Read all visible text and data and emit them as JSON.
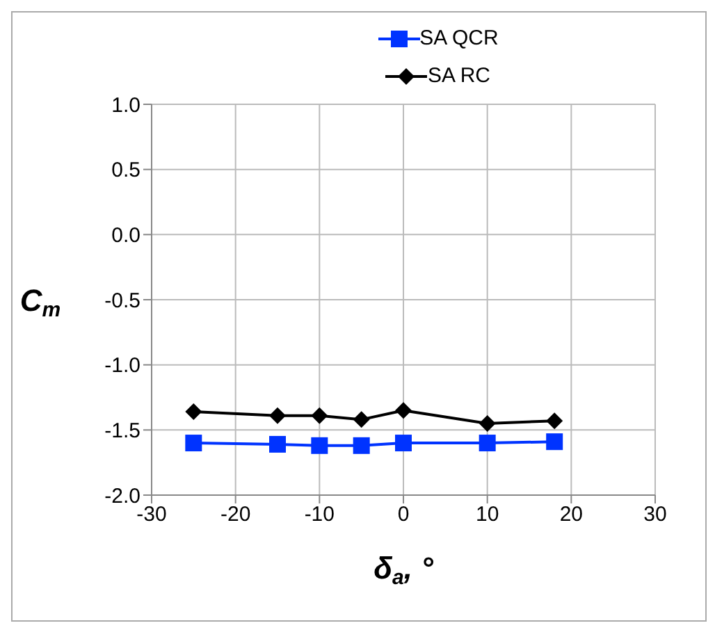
{
  "chart_data": {
    "type": "line",
    "x": [
      -25,
      -15,
      -10,
      -5,
      0,
      10,
      18
    ],
    "series": [
      {
        "name": "SA QCR",
        "color": "#0033ff",
        "marker": "square",
        "values": [
          -1.6,
          -1.61,
          -1.62,
          -1.62,
          -1.6,
          -1.6,
          -1.59
        ]
      },
      {
        "name": "SA RC",
        "color": "#000000",
        "marker": "diamond",
        "values": [
          -1.36,
          -1.39,
          -1.39,
          -1.42,
          -1.35,
          -1.45,
          -1.43
        ]
      }
    ],
    "xlabel": "δ$_{a}$, °",
    "ylabel": "C$_{m}$",
    "xlim": [
      -30,
      30
    ],
    "xticks": [
      -30,
      -20,
      -10,
      0,
      10,
      20,
      30
    ],
    "ylim": [
      -2.0,
      1.0
    ],
    "yticks": [
      {
        "value": -2.0,
        "label": "-2.0"
      },
      {
        "value": -1.5,
        "label": "-1.5"
      },
      {
        "value": -1.0,
        "label": "-1.0"
      },
      {
        "value": -0.5,
        "label": "-0.5"
      },
      {
        "value": 0,
        "label": "0.0"
      },
      {
        "value": 0.5,
        "label": "0.5"
      },
      {
        "value": 1.0,
        "label": "1.0"
      }
    ],
    "grid": true,
    "legend": "top"
  }
}
